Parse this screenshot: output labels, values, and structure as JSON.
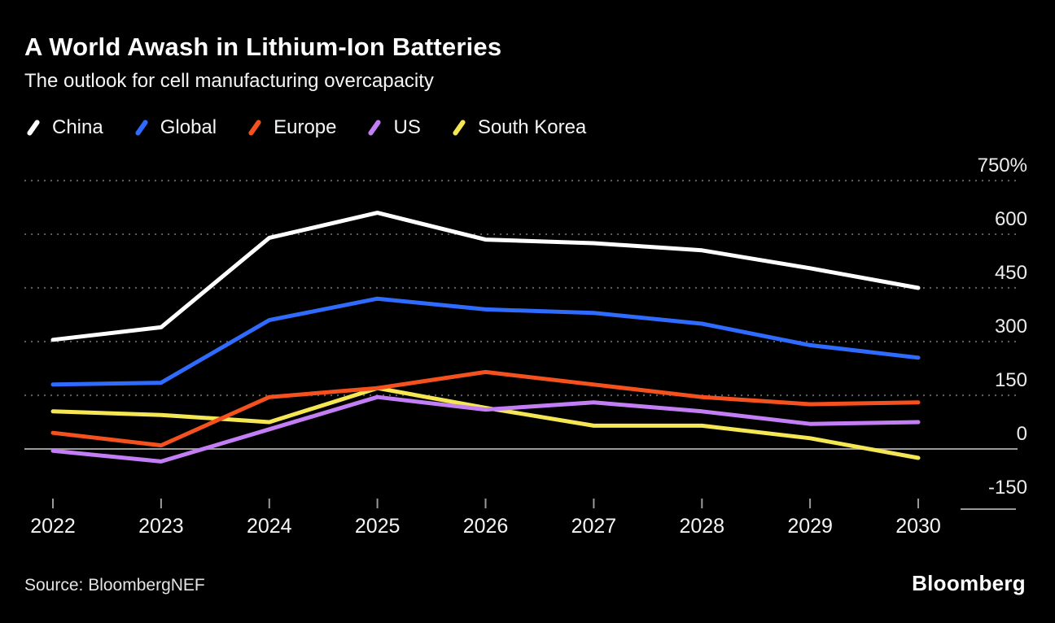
{
  "chart_data": {
    "type": "line",
    "title": "A World Awash in Lithium-Ion Batteries",
    "subtitle": "The outlook for cell manufacturing overcapacity",
    "categories": [
      "2022",
      "2023",
      "2024",
      "2025",
      "2026",
      "2027",
      "2028",
      "2029",
      "2030"
    ],
    "yticks": [
      {
        "label": "750%",
        "value": 750
      },
      {
        "label": "600",
        "value": 600
      },
      {
        "label": "450",
        "value": 450
      },
      {
        "label": "300",
        "value": 300
      },
      {
        "label": "150",
        "value": 150
      },
      {
        "label": "0",
        "value": 0
      },
      {
        "label": "-150",
        "value": -150
      }
    ],
    "ylim": [
      -190,
      790
    ],
    "unit": "%",
    "grid": "horizontal-dotted",
    "legend_position": "top-left",
    "background": "#000000",
    "series": [
      {
        "name": "China",
        "color": "#ffffff",
        "values": [
          305,
          340,
          590,
          660,
          585,
          575,
          555,
          505,
          450
        ]
      },
      {
        "name": "Global",
        "color": "#2f6bff",
        "values": [
          180,
          185,
          360,
          420,
          390,
          380,
          350,
          290,
          255
        ]
      },
      {
        "name": "Europe",
        "color": "#f4511e",
        "values": [
          45,
          10,
          145,
          170,
          215,
          180,
          145,
          125,
          130
        ]
      },
      {
        "name": "US",
        "color": "#c47ef5",
        "values": [
          -5,
          -35,
          55,
          145,
          110,
          130,
          105,
          70,
          75
        ]
      },
      {
        "name": "South Korea",
        "color": "#f5e653",
        "values": [
          105,
          95,
          75,
          170,
          115,
          65,
          65,
          30,
          -25
        ]
      }
    ]
  },
  "footer": {
    "source": "Source: BloombergNEF",
    "brand": "Bloomberg"
  }
}
